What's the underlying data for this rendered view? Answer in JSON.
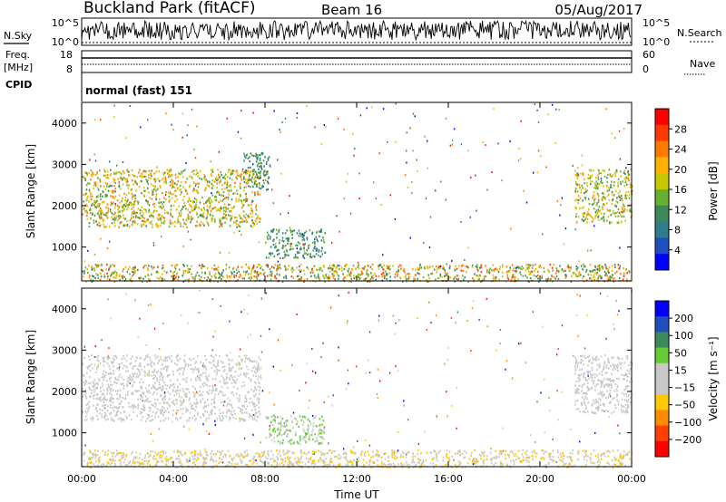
{
  "header": {
    "title": "Buckland Park (fitACF)",
    "beam": "Beam 16",
    "date": "05/Aug/2017"
  },
  "status_panels": {
    "nsky_label": "N.Sky",
    "nsearch_label": "N.Search",
    "freq_label": "Freq.",
    "freq_unit": "[MHz]",
    "nave_label": "Nave",
    "cpid_label": "CPID",
    "cpid_text": "normal (fast) 151",
    "noise_ticks_left": [
      "10^5",
      "10^0"
    ],
    "noise_ticks_right": [
      "10^5",
      "10^0"
    ],
    "freq_ticks": [
      "18",
      "8"
    ],
    "nave_ticks": [
      "60",
      "0"
    ]
  },
  "colors": {
    "power_scale": [
      "#0000ff",
      "#1f4fbf",
      "#2e7d8c",
      "#3c8a5a",
      "#66b032",
      "#c9c800",
      "#ffb000",
      "#ff7a00",
      "#ff3a00",
      "#ff0000"
    ],
    "velocity_scale": [
      "#0000ff",
      "#1f4fbf",
      "#3c8a5a",
      "#66cc33",
      "#c8c8c8",
      "#c8c8c8",
      "#ffc800",
      "#ff8c00",
      "#ff4000",
      "#ff0000"
    ]
  },
  "chart_data": [
    {
      "type": "heatmap",
      "title": "Power",
      "xlabel": "",
      "ylabel": "Slant Range [km]",
      "xlim": [
        "00:00",
        "24:00"
      ],
      "ylim": [
        180,
        4500
      ],
      "x_ticks": [
        "00:00",
        "04:00",
        "08:00",
        "12:00",
        "16:00",
        "20:00",
        "00:00"
      ],
      "y_ticks": [
        "1000",
        "2000",
        "3000",
        "4000"
      ],
      "colorbar": {
        "label": "Power [dB]",
        "ticks": [
          "4",
          "8",
          "12",
          "16",
          "20",
          "24",
          "28"
        ],
        "range": [
          0,
          30
        ]
      },
      "regions": [
        {
          "t_start": 0.0,
          "t_end": 7.8,
          "r_min": 1500,
          "r_max": 2900,
          "value_range": [
            10,
            24
          ]
        },
        {
          "t_start": 7.0,
          "t_end": 8.2,
          "r_min": 2400,
          "r_max": 3300,
          "value_range": [
            6,
            14
          ]
        },
        {
          "t_start": 8.0,
          "t_end": 10.6,
          "r_min": 750,
          "r_max": 1450,
          "value_range": [
            6,
            14
          ]
        },
        {
          "t_start": 0.0,
          "t_end": 24.0,
          "r_min": 180,
          "r_max": 600,
          "value_range": [
            8,
            26
          ]
        },
        {
          "t_start": 21.5,
          "t_end": 24.0,
          "r_min": 1600,
          "r_max": 2900,
          "value_range": [
            10,
            22
          ]
        }
      ]
    },
    {
      "type": "heatmap",
      "title": "Velocity",
      "xlabel": "Time UT",
      "ylabel": "Slant Range [km]",
      "xlim": [
        "00:00",
        "24:00"
      ],
      "ylim": [
        180,
        4500
      ],
      "x_ticks": [
        "00:00",
        "04:00",
        "08:00",
        "12:00",
        "16:00",
        "20:00",
        "00:00"
      ],
      "y_ticks": [
        "1000",
        "2000",
        "3000",
        "4000"
      ],
      "colorbar": {
        "label": "Velocity [m s⁻¹]",
        "ticks": [
          "200",
          "100",
          "50",
          "15",
          "−15",
          "−50",
          "−100",
          "−200"
        ],
        "range": [
          -250,
          250
        ]
      },
      "regions": [
        {
          "t_start": 0.0,
          "t_end": 7.8,
          "r_min": 1300,
          "r_max": 2900,
          "value_range": [
            -20,
            20
          ]
        },
        {
          "t_start": 8.0,
          "t_end": 10.6,
          "r_min": 750,
          "r_max": 1450,
          "value_range": [
            20,
            80
          ]
        },
        {
          "t_start": 0.0,
          "t_end": 24.0,
          "r_min": 180,
          "r_max": 600,
          "value_range": [
            -100,
            30
          ]
        },
        {
          "t_start": 21.5,
          "t_end": 24.0,
          "r_min": 1500,
          "r_max": 2900,
          "value_range": [
            -30,
            20
          ]
        }
      ]
    }
  ]
}
